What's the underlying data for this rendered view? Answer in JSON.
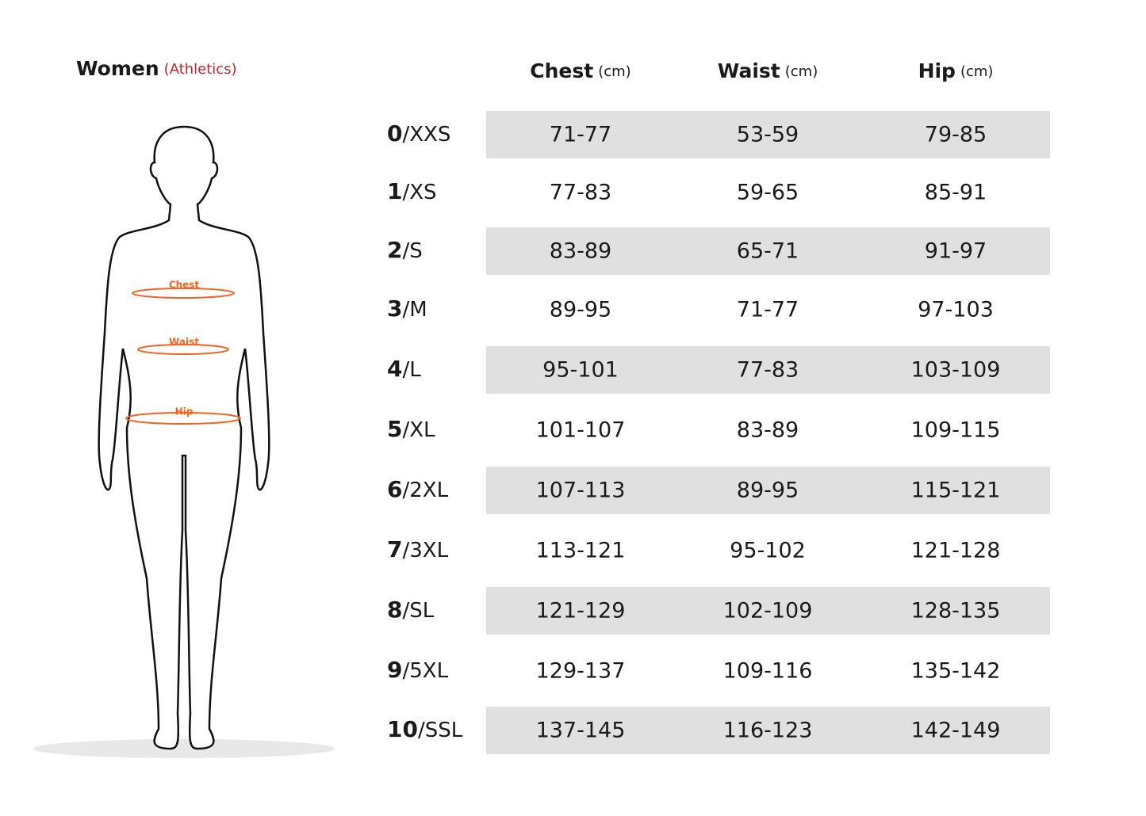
{
  "header": {
    "title": "Women",
    "subtitle": "(Athletics)"
  },
  "figure": {
    "labels": [
      "Chest",
      "Waist",
      "Hip"
    ]
  },
  "table": {
    "columns": [
      {
        "name": "Chest",
        "unit": "(cm)"
      },
      {
        "name": "Waist",
        "unit": "(cm)"
      },
      {
        "name": "Hip",
        "unit": "(cm)"
      }
    ],
    "rows": [
      {
        "number": "0",
        "size": "/XXS",
        "cells": [
          "71-77",
          "53-59",
          "79-85"
        ]
      },
      {
        "number": "1",
        "size": "/XS",
        "cells": [
          "77-83",
          "59-65",
          "85-91"
        ]
      },
      {
        "number": "2",
        "size": "/S",
        "cells": [
          "83-89",
          "65-71",
          "91-97"
        ]
      },
      {
        "number": "3",
        "size": "/M",
        "cells": [
          "89-95",
          "71-77",
          "97-103"
        ]
      },
      {
        "number": "4",
        "size": "/L",
        "cells": [
          "95-101",
          "77-83",
          "103-109"
        ]
      },
      {
        "number": "5",
        "size": "/XL",
        "cells": [
          "101-107",
          "83-89",
          "109-115"
        ]
      },
      {
        "number": "6",
        "size": "/2XL",
        "cells": [
          "107-113",
          "89-95",
          "115-121"
        ]
      },
      {
        "number": "7",
        "size": "/3XL",
        "cells": [
          "113-121",
          "95-102",
          "121-128"
        ]
      },
      {
        "number": "8",
        "size": "/SL",
        "cells": [
          "121-129",
          "102-109",
          "128-135"
        ]
      },
      {
        "number": "9",
        "size": "/5XL",
        "cells": [
          "129-137",
          "109-116",
          "135-142"
        ]
      },
      {
        "number": "10",
        "size": "/SSL",
        "cells": [
          "137-145",
          "116-123",
          "142-149"
        ]
      }
    ]
  }
}
